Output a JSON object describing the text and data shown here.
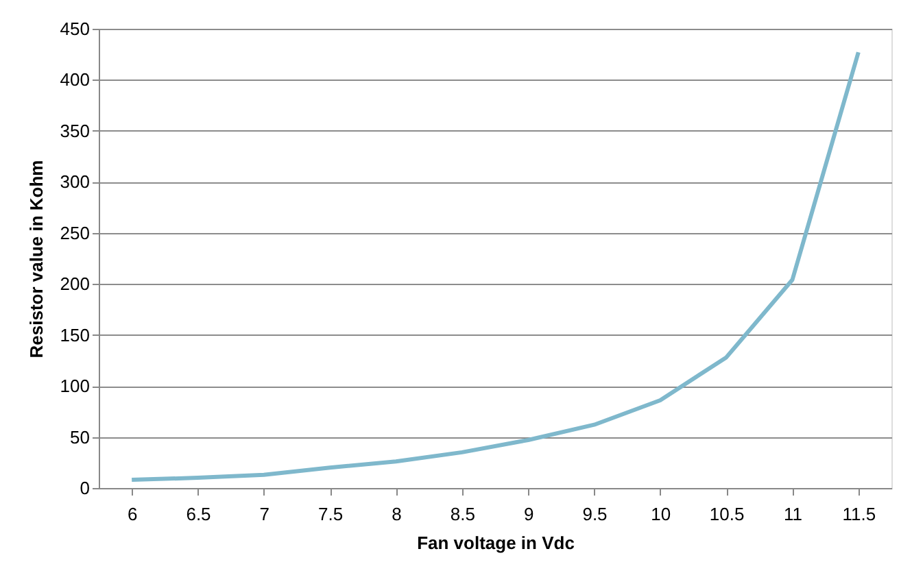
{
  "chart_data": {
    "type": "line",
    "xlabel": "Fan voltage in Vdc",
    "ylabel": "Resistor value in Kohm",
    "categories": [
      "6",
      "6.5",
      "7",
      "7.5",
      "8",
      "8.5",
      "9",
      "9.5",
      "10",
      "10.5",
      "11",
      "11.5"
    ],
    "series": [
      {
        "color": "#7fb8cc",
        "values": [
          8,
          10,
          13,
          20,
          26,
          35,
          47,
          62,
          86,
          128,
          204,
          427
        ]
      }
    ],
    "ylim": [
      0,
      450
    ],
    "yticks": [
      0,
      50,
      100,
      150,
      200,
      250,
      300,
      350,
      400,
      450
    ],
    "grid": "y",
    "marker": "none",
    "line_style": "solid"
  }
}
